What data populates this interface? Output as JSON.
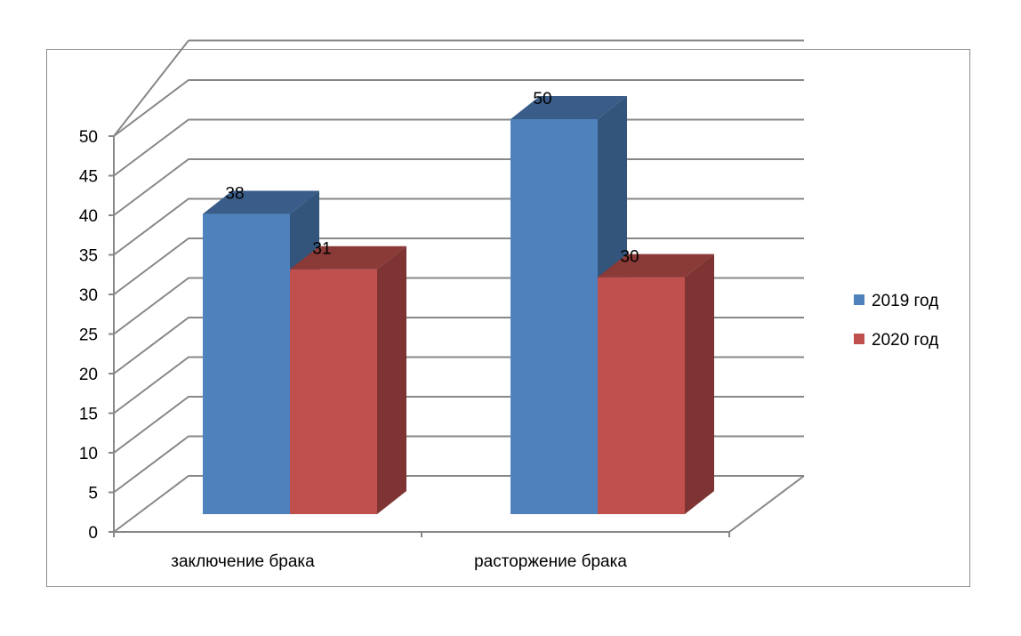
{
  "chart_data": {
    "type": "bar",
    "categories": [
      "заключение брака",
      "расторжение брака"
    ],
    "series": [
      {
        "name": "2019 год",
        "values": [
          38,
          50
        ],
        "color": "#4F81BD"
      },
      {
        "name": "2020 год",
        "values": [
          31,
          30
        ],
        "color": "#C0504D"
      }
    ],
    "ylim": [
      0,
      50
    ],
    "yticks": [
      0,
      5,
      10,
      15,
      20,
      25,
      30,
      35,
      40,
      45,
      50
    ],
    "grid": true,
    "legend_position": "right",
    "three_d": true
  }
}
